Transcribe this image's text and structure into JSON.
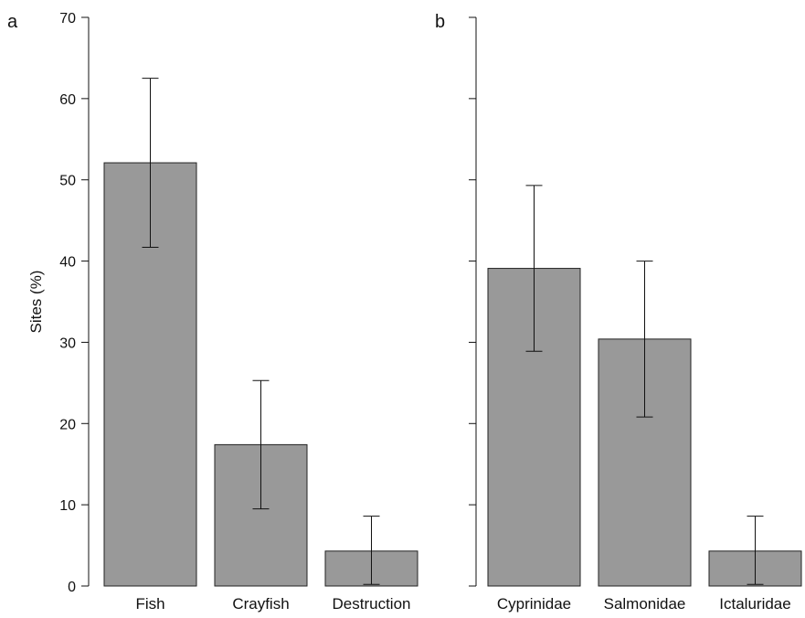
{
  "chart_data": [
    {
      "type": "bar",
      "panel_label": "a",
      "ylabel": "Sites (%)",
      "ylim": [
        0,
        70
      ],
      "yticks": [
        0,
        10,
        20,
        30,
        40,
        50,
        60,
        70
      ],
      "categories": [
        "Fish",
        "Crayfish",
        "Destruction"
      ],
      "values": [
        52.1,
        17.4,
        4.3
      ],
      "error_low": [
        41.7,
        9.5,
        0.2
      ],
      "error_high": [
        62.5,
        25.3,
        8.6
      ],
      "bar_color": "#999999",
      "grid": false
    },
    {
      "type": "bar",
      "panel_label": "b",
      "ylabel": "",
      "ylim": [
        0,
        70
      ],
      "yticks": [
        0,
        10,
        20,
        30,
        40,
        50,
        60,
        70
      ],
      "yticks_labeled": false,
      "categories": [
        "Cyprinidae",
        "Salmonidae",
        "Ictaluridae"
      ],
      "values": [
        39.1,
        30.4,
        4.3
      ],
      "error_low": [
        28.9,
        20.8,
        0.2
      ],
      "error_high": [
        49.3,
        40.0,
        8.6
      ],
      "bar_color": "#999999",
      "grid": false
    }
  ]
}
